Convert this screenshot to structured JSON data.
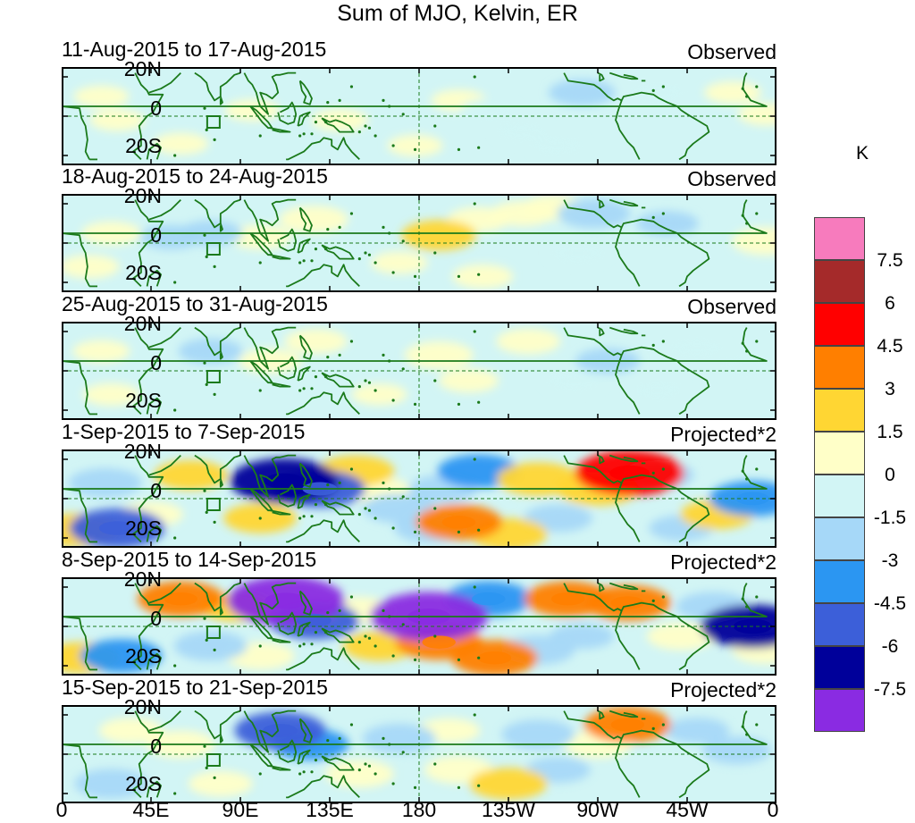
{
  "figure": {
    "title": "Sum of MJO, Kelvin, ER"
  },
  "panels": [
    {
      "date_range": "11-Aug-2015 to 17-Aug-2015",
      "status": "Observed"
    },
    {
      "date_range": "18-Aug-2015 to 24-Aug-2015",
      "status": "Observed"
    },
    {
      "date_range": "25-Aug-2015 to 31-Aug-2015",
      "status": "Observed"
    },
    {
      "date_range": "1-Sep-2015 to 7-Sep-2015",
      "status": "Projected*2"
    },
    {
      "date_range": "8-Sep-2015 to 14-Sep-2015",
      "status": "Projected*2"
    },
    {
      "date_range": "15-Sep-2015 to 21-Sep-2015",
      "status": "Projected*2"
    }
  ],
  "axes": {
    "lat_labels": [
      "20N",
      "0",
      "20S"
    ],
    "lon_labels": [
      "0",
      "45E",
      "90E",
      "135E",
      "180",
      "135W",
      "90W",
      "45W",
      "0"
    ]
  },
  "colorbar": {
    "unit": "K",
    "labels": [
      "7.5",
      "6",
      "4.5",
      "3",
      "1.5",
      "0",
      "-1.5",
      "-3",
      "-4.5",
      "-6",
      "-7.5"
    ],
    "colors": [
      "#f77bbd",
      "#a52a2a",
      "#ff0000",
      "#ff7f00",
      "#ffd633",
      "#ffffc8",
      "#d2f5f5",
      "#a6d8f8",
      "#2b96f2",
      "#3c5fd9",
      "#00009a",
      "#8a2be2"
    ]
  },
  "map_colors": {
    "background": "#d2f5f5",
    "coast": "#1b7a1b",
    "frame": "#000000"
  },
  "anomalies": [
    [
      {
        "lon": 300,
        "lat": 12,
        "v": -1.5
      },
      {
        "lon": 262,
        "lat": 12,
        "v": -2.3
      },
      {
        "lon": 338,
        "lat": 12,
        "v": 1.2
      },
      {
        "lon": 96,
        "lat": 3,
        "v": 1.0
      },
      {
        "lon": 140,
        "lat": -2,
        "v": 1.2
      },
      {
        "lon": 200,
        "lat": 8,
        "v": 1.0
      },
      {
        "lon": 215,
        "lat": 3,
        "v": -1.2
      },
      {
        "lon": 232,
        "lat": -8,
        "v": -1.0
      },
      {
        "lon": 28,
        "lat": -2,
        "v": 1.0
      },
      {
        "lon": 20,
        "lat": 10,
        "v": 1.0
      },
      {
        "lon": 355,
        "lat": 1,
        "v": 1.2
      },
      {
        "lon": 178,
        "lat": -15,
        "v": 1.0
      },
      {
        "lon": 250,
        "lat": -15,
        "v": -1.0
      },
      {
        "lon": 60,
        "lat": -14,
        "v": 1.0
      }
    ],
    [
      {
        "lon": 268,
        "lat": 15,
        "v": -3.0
      },
      {
        "lon": 305,
        "lat": 10,
        "v": -1.8
      },
      {
        "lon": 190,
        "lat": 4,
        "v": 3.2
      },
      {
        "lon": 210,
        "lat": 12,
        "v": 1.8
      },
      {
        "lon": 232,
        "lat": 15,
        "v": 2.0
      },
      {
        "lon": 248,
        "lat": 18,
        "v": 2.0
      },
      {
        "lon": 127,
        "lat": 12,
        "v": 2.5
      },
      {
        "lon": 75,
        "lat": 5,
        "v": -2.0
      },
      {
        "lon": 55,
        "lat": 3,
        "v": -1.8
      },
      {
        "lon": 100,
        "lat": 3,
        "v": 1.8
      },
      {
        "lon": 355,
        "lat": 1,
        "v": 2.6
      },
      {
        "lon": 25,
        "lat": 5,
        "v": 1.5
      },
      {
        "lon": 212,
        "lat": -17,
        "v": 1.6
      },
      {
        "lon": 170,
        "lat": -10,
        "v": 1.2
      },
      {
        "lon": 260,
        "lat": -5,
        "v": -1.5
      },
      {
        "lon": 145,
        "lat": -5,
        "v": -1.2
      },
      {
        "lon": 14,
        "lat": -12,
        "v": 1.5
      }
    ],
    [
      {
        "lon": 190,
        "lat": 8,
        "v": 2.5
      },
      {
        "lon": 235,
        "lat": 15,
        "v": 2.0
      },
      {
        "lon": 75,
        "lat": 10,
        "v": -2.0
      },
      {
        "lon": 105,
        "lat": 5,
        "v": 1.8
      },
      {
        "lon": 128,
        "lat": 15,
        "v": 1.8
      },
      {
        "lon": 275,
        "lat": 5,
        "v": -2.0
      },
      {
        "lon": 258,
        "lat": -5,
        "v": -1.5
      },
      {
        "lon": 345,
        "lat": 2,
        "v": -1.5
      },
      {
        "lon": 205,
        "lat": -5,
        "v": 1.5
      },
      {
        "lon": 25,
        "lat": -12,
        "v": 1.2
      },
      {
        "lon": 20,
        "lat": 10,
        "v": 1.2
      },
      {
        "lon": 160,
        "lat": -12,
        "v": 1.0
      },
      {
        "lon": 320,
        "lat": 12,
        "v": -1.2
      },
      {
        "lon": 300,
        "lat": -10,
        "v": -1.0
      }
    ],
    [
      {
        "lon": 286,
        "lat": 13,
        "v": 7.0
      },
      {
        "lon": 270,
        "lat": 5,
        "v": 4.0
      },
      {
        "lon": 112,
        "lat": 9,
        "v": -7.0
      },
      {
        "lon": 130,
        "lat": 5,
        "v": -5.0
      },
      {
        "lon": 22,
        "lat": 8,
        "v": -3.0
      },
      {
        "lon": 28,
        "lat": -15,
        "v": -5.5
      },
      {
        "lon": 8,
        "lat": -16,
        "v": 4.0
      },
      {
        "lon": 65,
        "lat": 12,
        "v": 3.0
      },
      {
        "lon": 100,
        "lat": -10,
        "v": 3.0
      },
      {
        "lon": 148,
        "lat": 14,
        "v": 3.5
      },
      {
        "lon": 160,
        "lat": 4,
        "v": 2.2
      },
      {
        "lon": 200,
        "lat": -12,
        "v": 4.5
      },
      {
        "lon": 225,
        "lat": -18,
        "v": 3.5
      },
      {
        "lon": 170,
        "lat": -5,
        "v": -3.0
      },
      {
        "lon": 192,
        "lat": 5,
        "v": -2.5
      },
      {
        "lon": 210,
        "lat": 14,
        "v": -4.0
      },
      {
        "lon": 240,
        "lat": 10,
        "v": 4.0
      },
      {
        "lon": 300,
        "lat": 12,
        "v": -3.0
      },
      {
        "lon": 348,
        "lat": 0,
        "v": -4.5
      },
      {
        "lon": 330,
        "lat": -8,
        "v": 3.0
      },
      {
        "lon": 250,
        "lat": -10,
        "v": -2.5
      },
      {
        "lon": 186,
        "lat": -15,
        "v": -3.0
      },
      {
        "lon": 45,
        "lat": -8,
        "v": 2.0
      },
      {
        "lon": 312,
        "lat": -15,
        "v": -2.0
      }
    ],
    [
      {
        "lon": 113,
        "lat": 13,
        "v": -8.0
      },
      {
        "lon": 127,
        "lat": 3,
        "v": -5.0
      },
      {
        "lon": 60,
        "lat": 14,
        "v": 4.5
      },
      {
        "lon": 88,
        "lat": 10,
        "v": 3.0
      },
      {
        "lon": 185,
        "lat": 5,
        "v": -8.0
      },
      {
        "lon": 215,
        "lat": 14,
        "v": -4.5
      },
      {
        "lon": 255,
        "lat": 14,
        "v": 4.5
      },
      {
        "lon": 285,
        "lat": 12,
        "v": 4.5
      },
      {
        "lon": 190,
        "lat": -8,
        "v": 4.5
      },
      {
        "lon": 218,
        "lat": -16,
        "v": 4.5
      },
      {
        "lon": 150,
        "lat": 8,
        "v": 2.5
      },
      {
        "lon": 160,
        "lat": -10,
        "v": 3.0
      },
      {
        "lon": 348,
        "lat": 0,
        "v": -6.5
      },
      {
        "lon": 328,
        "lat": 10,
        "v": -3.0
      },
      {
        "lon": 312,
        "lat": -5,
        "v": 2.5
      },
      {
        "lon": 30,
        "lat": -15,
        "v": -4.0
      },
      {
        "lon": 10,
        "lat": -16,
        "v": 3.5
      },
      {
        "lon": 100,
        "lat": -15,
        "v": 2.5
      },
      {
        "lon": 75,
        "lat": -10,
        "v": -3.0
      },
      {
        "lon": 240,
        "lat": -12,
        "v": -3.0
      },
      {
        "lon": 262,
        "lat": -5,
        "v": -2.0
      },
      {
        "lon": 355,
        "lat": -12,
        "v": 2.5
      }
    ],
    [
      {
        "lon": 110,
        "lat": 12,
        "v": -5.0
      },
      {
        "lon": 125,
        "lat": 5,
        "v": -3.5
      },
      {
        "lon": 60,
        "lat": 5,
        "v": 2.5
      },
      {
        "lon": 35,
        "lat": 12,
        "v": 2.0
      },
      {
        "lon": 170,
        "lat": 8,
        "v": -3.0
      },
      {
        "lon": 200,
        "lat": -8,
        "v": 2.5
      },
      {
        "lon": 225,
        "lat": -15,
        "v": 3.5
      },
      {
        "lon": 285,
        "lat": 15,
        "v": 4.5
      },
      {
        "lon": 270,
        "lat": 5,
        "v": 2.5
      },
      {
        "lon": 240,
        "lat": 10,
        "v": -3.0
      },
      {
        "lon": 340,
        "lat": 2,
        "v": -2.5
      },
      {
        "lon": 320,
        "lat": 12,
        "v": -2.0
      },
      {
        "lon": 25,
        "lat": -15,
        "v": -3.0
      },
      {
        "lon": 80,
        "lat": -15,
        "v": 2.0
      },
      {
        "lon": 150,
        "lat": -10,
        "v": 2.5
      },
      {
        "lon": 250,
        "lat": -8,
        "v": -2.0
      },
      {
        "lon": 195,
        "lat": 12,
        "v": 1.8
      }
    ]
  ]
}
